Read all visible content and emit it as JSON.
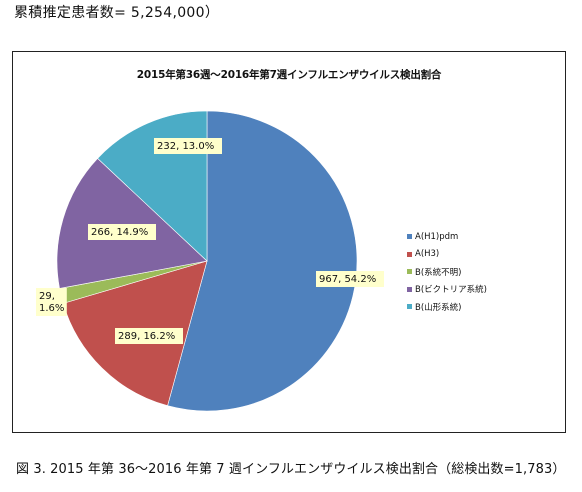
{
  "header": {
    "estimate_text": "累積推定患者数=  5,254,000）"
  },
  "chart_data": {
    "type": "pie",
    "title": "2015年第36週〜2016年第7週インフルエンザウイルス検出割合",
    "slices": [
      {
        "name": "A(H1)pdm",
        "value": 967,
        "label": "967, 54.2%",
        "color": "#4F81BD"
      },
      {
        "name": "A(H3)",
        "value": 289,
        "label": "289, 16.2%",
        "color": "#C0504D"
      },
      {
        "name": "B(系統不明)",
        "value": 29,
        "label": "29,\n1.6%",
        "color": "#9BBB59"
      },
      {
        "name": "B(ビクトリア系統)",
        "value": 266,
        "label": "266, 14.9%",
        "color": "#8064A2"
      },
      {
        "name": "B(山形系統)",
        "value": 232,
        "label": "232, 13.0%",
        "color": "#4BACC6"
      }
    ],
    "legend_position": "right"
  },
  "caption": {
    "text": "図 3. 2015 年第 36～2016 年第 7 週インフルエンザウイルス検出割合（総検出数=1,783）"
  }
}
